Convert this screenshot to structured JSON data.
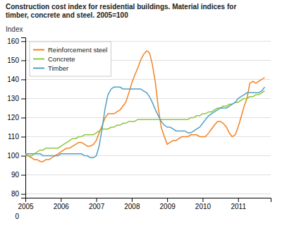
{
  "chart_data": {
    "type": "line",
    "title": "Construction cost index for residential buildings. Material indices for\ntimber, concrete and steel. 2005=100",
    "ylabel": "Index",
    "annotations": [
      "0"
    ],
    "x": [
      2005.0,
      2005.08,
      2005.17,
      2005.25,
      2005.33,
      2005.42,
      2005.5,
      2005.58,
      2005.67,
      2005.75,
      2005.83,
      2005.92,
      2006.0,
      2006.08,
      2006.17,
      2006.25,
      2006.33,
      2006.42,
      2006.5,
      2006.58,
      2006.67,
      2006.75,
      2006.83,
      2006.92,
      2007.0,
      2007.08,
      2007.17,
      2007.25,
      2007.33,
      2007.42,
      2007.5,
      2007.58,
      2007.67,
      2007.75,
      2007.83,
      2007.92,
      2008.0,
      2008.08,
      2008.17,
      2008.25,
      2008.33,
      2008.42,
      2008.5,
      2008.58,
      2008.67,
      2008.75,
      2008.83,
      2008.92,
      2009.0,
      2009.08,
      2009.17,
      2009.25,
      2009.33,
      2009.42,
      2009.5,
      2009.58,
      2009.67,
      2009.75,
      2009.83,
      2009.92,
      2010.0,
      2010.08,
      2010.17,
      2010.25,
      2010.33,
      2010.42,
      2010.5,
      2010.58,
      2010.67,
      2010.75,
      2010.83,
      2010.92,
      2011.0,
      2011.08,
      2011.17,
      2011.25,
      2011.33,
      2011.42,
      2011.5,
      2011.58,
      2011.67,
      2011.75
    ],
    "series": [
      {
        "name": "Reinforcement steel",
        "color": "#f4811f",
        "values": [
          101,
          100,
          99,
          98,
          98,
          97,
          97,
          98,
          98,
          99,
          100,
          101,
          102,
          103,
          104,
          104,
          105,
          106,
          107,
          107,
          106,
          105,
          105,
          106,
          108,
          112,
          116,
          120,
          122,
          122,
          122,
          123,
          124,
          126,
          128,
          133,
          138,
          142,
          146,
          150,
          153,
          155,
          154,
          148,
          138,
          125,
          115,
          110,
          106,
          107,
          108,
          108,
          109,
          110,
          110,
          110,
          111,
          111,
          111,
          110,
          110,
          110,
          112,
          114,
          116,
          118,
          118,
          117,
          115,
          112,
          110,
          111,
          115,
          120,
          126,
          130,
          138,
          139,
          138,
          139,
          140,
          141
        ]
      },
      {
        "name": "Concrete",
        "color": "#8dc63f",
        "values": [
          100,
          100,
          100,
          101,
          102,
          103,
          103,
          104,
          104,
          104,
          104,
          104,
          105,
          106,
          107,
          108,
          109,
          109,
          110,
          110,
          111,
          111,
          111,
          111,
          112,
          113,
          114,
          114,
          114,
          115,
          115,
          116,
          116,
          117,
          117,
          118,
          118,
          118,
          119,
          119,
          119,
          119,
          119,
          119,
          119,
          119,
          119,
          119,
          119,
          119,
          119,
          119,
          119,
          119,
          119,
          119,
          120,
          120,
          121,
          121,
          122,
          122,
          123,
          123,
          124,
          125,
          125,
          126,
          126,
          127,
          127,
          128,
          128,
          129,
          130,
          130,
          131,
          131,
          132,
          132,
          133,
          134
        ]
      },
      {
        "name": "Timber",
        "color": "#4fa1c4",
        "values": [
          101,
          101,
          101,
          101,
          101,
          101,
          100,
          100,
          100,
          100,
          100,
          100,
          101,
          101,
          101,
          101,
          101,
          101,
          101,
          101,
          100,
          100,
          99,
          99,
          100,
          105,
          115,
          125,
          132,
          135,
          136,
          136,
          136,
          135,
          135,
          135,
          135,
          135,
          135,
          135,
          134,
          133,
          131,
          128,
          124,
          121,
          118,
          116,
          115,
          115,
          114,
          113,
          113,
          113,
          113,
          112,
          112,
          113,
          114,
          115,
          117,
          119,
          121,
          122,
          123,
          124,
          125,
          125,
          125,
          126,
          127,
          128,
          130,
          131,
          132,
          133,
          133,
          133,
          133,
          133,
          134,
          136
        ]
      }
    ],
    "xlim": [
      2005.0,
      2011.92
    ],
    "xticks": [
      2005,
      2006,
      2007,
      2008,
      2009,
      2010,
      2011
    ],
    "ylim": [
      78,
      162
    ],
    "yticks": [
      80,
      90,
      100,
      110,
      120,
      130,
      140,
      150,
      160
    ],
    "grid": true,
    "legend": "upper left"
  }
}
